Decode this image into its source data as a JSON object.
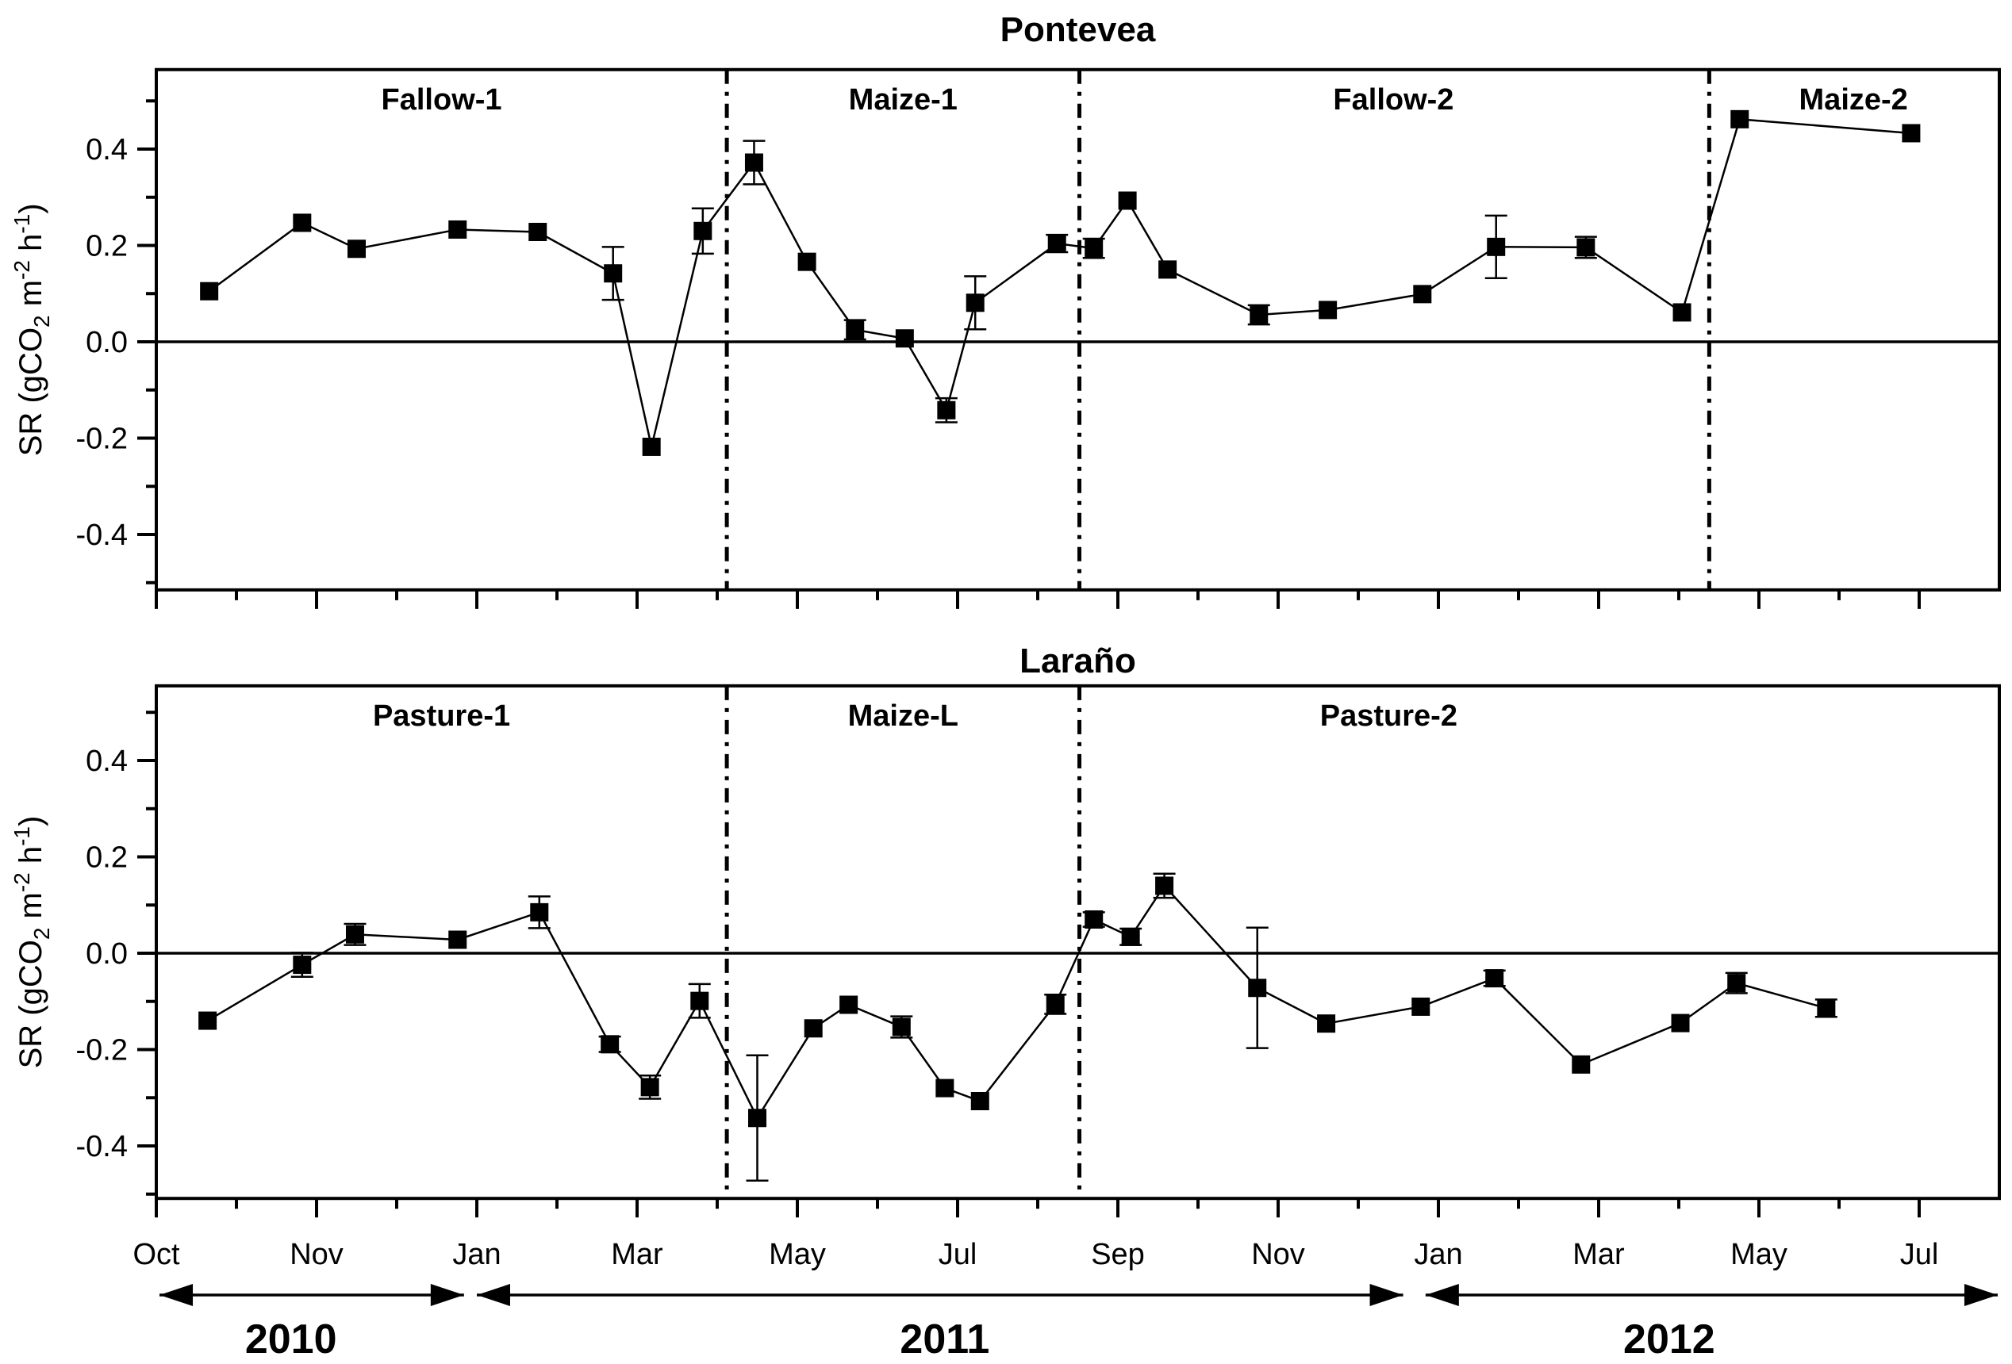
{
  "style": {
    "ink": "#000000",
    "background": "#ffffff"
  },
  "point_format": [
    "t = x position in tick units (0 = first 'Oct' tick, 1 = 'Nov', ... 11 = last 'Jul' tick)",
    "SR value (gCO2 m-2 h-1)",
    "error bar half-height in SR units, null if no visible error bar"
  ],
  "x_axis": {
    "tick_labels": [
      "Oct",
      "Nov",
      "Jan",
      "Mar",
      "May",
      "Jul",
      "Sep",
      "Nov",
      "Jan",
      "Mar",
      "May",
      "Jul"
    ],
    "minor_ticks_between_majors": true
  },
  "year_arrows": [
    {
      "label": "2010",
      "t_start": 0.02,
      "t_end": 1.92,
      "label_t": 0.84
    },
    {
      "label": "2011",
      "t_start": 2.0,
      "t_end": 7.78,
      "label_t": 4.92
    },
    {
      "label": "2012",
      "t_start": 7.92,
      "t_end": 11.49,
      "label_t": 9.44
    }
  ],
  "chart_data": [
    {
      "type": "line",
      "title": "Pontevea",
      "ylabel_plain": "SR (gCO2 m-2 h-1)",
      "ylabel_parts": {
        "p1": "SR (gCO",
        "sub1": "2",
        "p2": " m",
        "sup1": "-2",
        "p3": " h",
        "sup2": "-1",
        "p4": ")"
      },
      "ylim": [
        -0.515,
        0.565
      ],
      "yticks": [
        {
          "v": 0.4,
          "label": "0.4"
        },
        {
          "v": 0.2,
          "label": "0.2"
        },
        {
          "v": 0.0,
          "label": "0.0"
        },
        {
          "v": -0.2,
          "label": "-0.2"
        },
        {
          "v": -0.4,
          "label": "-0.4"
        }
      ],
      "yticks_minor": [
        0.5,
        0.3,
        0.1,
        -0.1,
        -0.3,
        -0.5
      ],
      "grid": false,
      "legend": null,
      "phases": [
        {
          "label": "Fallow-1",
          "t": 1.78
        },
        {
          "label": "Maize-1",
          "t": 4.66
        },
        {
          "label": "Fallow-2",
          "t": 7.72
        },
        {
          "label": "Maize-2",
          "t": 10.59
        }
      ],
      "separators_t": [
        3.56,
        5.76,
        9.69
      ],
      "series": [
        {
          "name": "SR Pontevea",
          "marker": "filled-square",
          "points": [
            [
              0.33,
              0.105,
              null
            ],
            [
              0.91,
              0.247,
              null
            ],
            [
              1.25,
              0.193,
              null
            ],
            [
              1.88,
              0.233,
              null
            ],
            [
              2.38,
              0.228,
              null
            ],
            [
              2.85,
              0.142,
              0.055
            ],
            [
              3.09,
              -0.218,
              null
            ],
            [
              3.41,
              0.23,
              0.047
            ],
            [
              3.73,
              0.372,
              0.045
            ],
            [
              4.06,
              0.166,
              null
            ],
            [
              4.36,
              0.025,
              0.02
            ],
            [
              4.67,
              0.007,
              null
            ],
            [
              4.93,
              -0.142,
              0.025
            ],
            [
              5.11,
              0.081,
              0.055
            ],
            [
              5.62,
              0.204,
              0.018
            ],
            [
              5.85,
              0.194,
              0.02
            ],
            [
              6.06,
              0.293,
              null
            ],
            [
              6.31,
              0.15,
              null
            ],
            [
              6.88,
              0.056,
              0.02
            ],
            [
              7.31,
              0.066,
              null
            ],
            [
              7.9,
              0.099,
              null
            ],
            [
              8.36,
              0.197,
              0.065
            ],
            [
              8.92,
              0.196,
              0.022
            ],
            [
              9.52,
              0.061,
              null
            ],
            [
              9.88,
              0.462,
              null
            ],
            [
              10.95,
              0.433,
              null
            ]
          ]
        }
      ]
    },
    {
      "type": "line",
      "title": "Laraño",
      "ylabel_plain": "SR (gCO2 m-2 h-1)",
      "ylabel_parts": {
        "p1": "SR (gCO",
        "sub1": "2",
        "p2": " m",
        "sup1": "-2",
        "p3": " h",
        "sup2": "-1",
        "p4": ")"
      },
      "ylim": [
        -0.509,
        0.555
      ],
      "yticks": [
        {
          "v": 0.4,
          "label": "0.4"
        },
        {
          "v": 0.2,
          "label": "0.2"
        },
        {
          "v": 0.0,
          "label": "0.0"
        },
        {
          "v": -0.2,
          "label": "-0.2"
        },
        {
          "v": -0.4,
          "label": "-0.4"
        }
      ],
      "yticks_minor": [
        0.5,
        0.3,
        0.1,
        -0.1,
        -0.3,
        -0.5
      ],
      "grid": false,
      "legend": null,
      "phases": [
        {
          "label": "Pasture-1",
          "t": 1.78
        },
        {
          "label": "Maize-L",
          "t": 4.66
        },
        {
          "label": "Pasture-2",
          "t": 7.69
        }
      ],
      "separators_t": [
        3.56,
        5.76
      ],
      "series": [
        {
          "name": "SR Laraño",
          "marker": "filled-square",
          "points": [
            [
              0.32,
              -0.14,
              null
            ],
            [
              0.91,
              -0.024,
              0.025
            ],
            [
              1.24,
              0.039,
              0.022
            ],
            [
              1.88,
              0.028,
              null
            ],
            [
              2.39,
              0.085,
              0.033
            ],
            [
              2.83,
              -0.189,
              0.016
            ],
            [
              3.08,
              -0.278,
              0.024
            ],
            [
              3.39,
              -0.099,
              0.035
            ],
            [
              3.75,
              -0.342,
              0.13
            ],
            [
              4.1,
              -0.156,
              null
            ],
            [
              4.32,
              -0.107,
              null
            ],
            [
              4.65,
              -0.153,
              0.022
            ],
            [
              4.92,
              -0.28,
              null
            ],
            [
              5.14,
              -0.307,
              null
            ],
            [
              5.61,
              -0.106,
              0.02
            ],
            [
              5.85,
              0.07,
              0.015
            ],
            [
              6.08,
              0.034,
              0.017
            ],
            [
              6.29,
              0.14,
              0.025
            ],
            [
              6.87,
              -0.072,
              0.125
            ],
            [
              7.3,
              -0.146,
              null
            ],
            [
              7.89,
              -0.111,
              null
            ],
            [
              8.35,
              -0.052,
              0.016
            ],
            [
              8.89,
              -0.231,
              null
            ],
            [
              9.51,
              -0.145,
              null
            ],
            [
              9.86,
              -0.062,
              0.021
            ],
            [
              10.42,
              -0.114,
              0.018
            ]
          ]
        }
      ]
    }
  ]
}
